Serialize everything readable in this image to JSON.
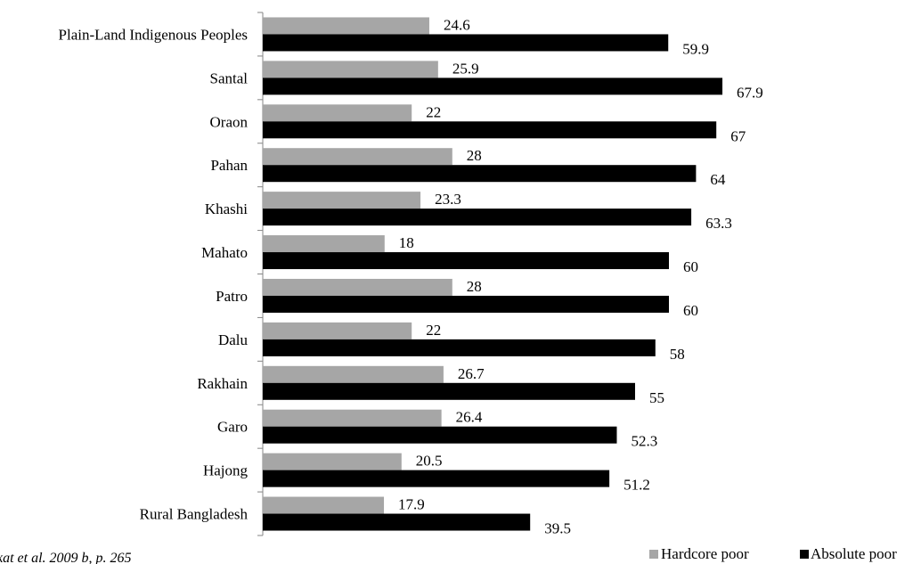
{
  "chart_data": {
    "type": "bar",
    "orientation": "horizontal",
    "categories": [
      "Plain-Land Indigenous Peoples",
      "Santal",
      "Oraon",
      "Pahan",
      "Khashi",
      "Mahato",
      "Patro",
      "Dalu",
      "Rakhain",
      "Garo",
      "Hajong",
      "Rural Bangladesh"
    ],
    "series": [
      {
        "name": "Hardcore poor",
        "color": "#a6a6a6",
        "values": [
          24.6,
          25.9,
          22,
          28,
          23.3,
          18,
          28,
          22,
          26.7,
          26.4,
          20.5,
          17.9
        ]
      },
      {
        "name": "Absolute poor",
        "color": "#000000",
        "values": [
          59.9,
          67.9,
          67,
          64,
          63.3,
          60,
          60,
          58,
          55,
          52.3,
          51.2,
          39.5
        ]
      }
    ],
    "data_labels": [
      [
        "24.6",
        "25.9",
        "22",
        "28",
        "23.3",
        "18",
        "28",
        "22",
        "26.7",
        "26.4",
        "20.5",
        "17.9"
      ],
      [
        "59.9",
        "67.9",
        "67",
        "64",
        "63.3",
        "60",
        "60",
        "58",
        "55",
        "52.3",
        "51.2",
        "39.5"
      ]
    ],
    "xlim": [
      0,
      68
    ],
    "grid": false,
    "legend_position": "bottom-right",
    "source_note": "kat et al. 2009 b, p. 265"
  }
}
